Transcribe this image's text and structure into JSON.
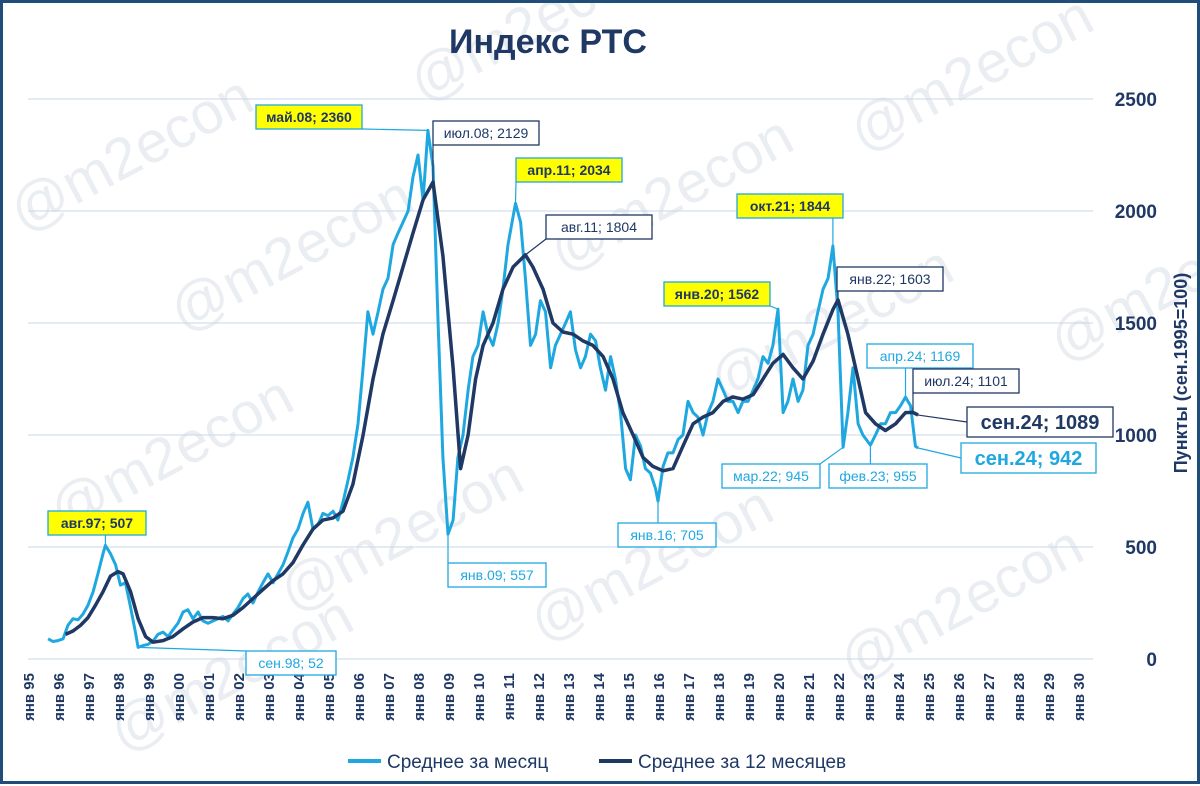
{
  "watermark": "@m2econ",
  "chart_data": {
    "type": "line",
    "title": "Индекс РТС",
    "ylabel": "Пункты (сен.1995=100)",
    "ylim": [
      0,
      2500
    ],
    "yticks": [
      0,
      500,
      1000,
      1500,
      2000,
      2500
    ],
    "grid": true,
    "legend": "bottom",
    "x_tick_labels": [
      "янв 95",
      "янв 96",
      "янв 97",
      "янв 98",
      "янв 99",
      "янв 00",
      "янв 01",
      "янв 02",
      "янв 03",
      "янв 04",
      "янв 05",
      "янв 06",
      "янв 07",
      "янв 08",
      "янв 09",
      "янв 10",
      "янв 11",
      "янв 12",
      "янв 13",
      "янв 14",
      "янв 15",
      "янв 16",
      "янв 17",
      "янв 18",
      "янв 19",
      "янв 20",
      "янв 21",
      "янв 22",
      "янв 23",
      "янв 24",
      "янв 25",
      "янв 26",
      "янв 27",
      "янв 28",
      "янв 29",
      "янв 30"
    ],
    "x_range": [
      1995.0,
      2030.5
    ],
    "series": [
      {
        "name": "Среднее за месяц",
        "color": "#1fa8e0",
        "points": [
          [
            1995.67,
            90
          ],
          [
            1995.83,
            78
          ],
          [
            1996.0,
            82
          ],
          [
            1996.17,
            90
          ],
          [
            1996.33,
            150
          ],
          [
            1996.5,
            180
          ],
          [
            1996.67,
            175
          ],
          [
            1996.83,
            200
          ],
          [
            1997.0,
            240
          ],
          [
            1997.17,
            300
          ],
          [
            1997.33,
            380
          ],
          [
            1997.5,
            470
          ],
          [
            1997.58,
            507
          ],
          [
            1997.75,
            470
          ],
          [
            1997.92,
            420
          ],
          [
            1998.08,
            330
          ],
          [
            1998.25,
            340
          ],
          [
            1998.42,
            230
          ],
          [
            1998.58,
            120
          ],
          [
            1998.67,
            52
          ],
          [
            1998.83,
            60
          ],
          [
            1999.0,
            65
          ],
          [
            1999.17,
            80
          ],
          [
            1999.33,
            110
          ],
          [
            1999.5,
            120
          ],
          [
            1999.67,
            100
          ],
          [
            1999.83,
            130
          ],
          [
            2000.0,
            160
          ],
          [
            2000.17,
            210
          ],
          [
            2000.33,
            220
          ],
          [
            2000.5,
            180
          ],
          [
            2000.67,
            210
          ],
          [
            2000.83,
            170
          ],
          [
            2001.0,
            160
          ],
          [
            2001.17,
            170
          ],
          [
            2001.33,
            180
          ],
          [
            2001.5,
            190
          ],
          [
            2001.67,
            170
          ],
          [
            2001.83,
            200
          ],
          [
            2002.0,
            230
          ],
          [
            2002.17,
            270
          ],
          [
            2002.33,
            290
          ],
          [
            2002.5,
            250
          ],
          [
            2002.67,
            300
          ],
          [
            2002.83,
            340
          ],
          [
            2003.0,
            380
          ],
          [
            2003.17,
            340
          ],
          [
            2003.33,
            380
          ],
          [
            2003.5,
            420
          ],
          [
            2003.67,
            480
          ],
          [
            2003.83,
            540
          ],
          [
            2004.0,
            580
          ],
          [
            2004.17,
            650
          ],
          [
            2004.33,
            700
          ],
          [
            2004.5,
            580
          ],
          [
            2004.67,
            600
          ],
          [
            2004.83,
            650
          ],
          [
            2005.0,
            640
          ],
          [
            2005.17,
            660
          ],
          [
            2005.33,
            620
          ],
          [
            2005.5,
            700
          ],
          [
            2005.67,
            800
          ],
          [
            2005.83,
            900
          ],
          [
            2006.0,
            1050
          ],
          [
            2006.17,
            1300
          ],
          [
            2006.33,
            1550
          ],
          [
            2006.5,
            1450
          ],
          [
            2006.67,
            1550
          ],
          [
            2006.83,
            1650
          ],
          [
            2007.0,
            1700
          ],
          [
            2007.17,
            1850
          ],
          [
            2007.33,
            1900
          ],
          [
            2007.5,
            1950
          ],
          [
            2007.67,
            2000
          ],
          [
            2007.83,
            2150
          ],
          [
            2008.0,
            2250
          ],
          [
            2008.17,
            2050
          ],
          [
            2008.33,
            2360
          ],
          [
            2008.5,
            2200
          ],
          [
            2008.67,
            1500
          ],
          [
            2008.83,
            900
          ],
          [
            2009.0,
            557
          ],
          [
            2009.17,
            620
          ],
          [
            2009.33,
            900
          ],
          [
            2009.5,
            1000
          ],
          [
            2009.67,
            1200
          ],
          [
            2009.83,
            1350
          ],
          [
            2010.0,
            1400
          ],
          [
            2010.17,
            1550
          ],
          [
            2010.33,
            1450
          ],
          [
            2010.5,
            1400
          ],
          [
            2010.67,
            1500
          ],
          [
            2010.83,
            1650
          ],
          [
            2011.0,
            1850
          ],
          [
            2011.25,
            2034
          ],
          [
            2011.42,
            1950
          ],
          [
            2011.58,
            1700
          ],
          [
            2011.75,
            1400
          ],
          [
            2011.92,
            1450
          ],
          [
            2012.08,
            1600
          ],
          [
            2012.25,
            1550
          ],
          [
            2012.42,
            1300
          ],
          [
            2012.58,
            1400
          ],
          [
            2012.75,
            1450
          ],
          [
            2012.92,
            1500
          ],
          [
            2013.08,
            1550
          ],
          [
            2013.25,
            1380
          ],
          [
            2013.42,
            1300
          ],
          [
            2013.58,
            1350
          ],
          [
            2013.75,
            1450
          ],
          [
            2013.92,
            1420
          ],
          [
            2014.08,
            1300
          ],
          [
            2014.25,
            1200
          ],
          [
            2014.42,
            1350
          ],
          [
            2014.58,
            1250
          ],
          [
            2014.75,
            1100
          ],
          [
            2014.92,
            850
          ],
          [
            2015.08,
            800
          ],
          [
            2015.25,
            1000
          ],
          [
            2015.42,
            950
          ],
          [
            2015.58,
            850
          ],
          [
            2015.75,
            830
          ],
          [
            2015.92,
            760
          ],
          [
            2016.0,
            705
          ],
          [
            2016.17,
            860
          ],
          [
            2016.33,
            920
          ],
          [
            2016.5,
            920
          ],
          [
            2016.67,
            980
          ],
          [
            2016.83,
            1000
          ],
          [
            2017.0,
            1150
          ],
          [
            2017.17,
            1100
          ],
          [
            2017.33,
            1080
          ],
          [
            2017.5,
            1000
          ],
          [
            2017.67,
            1100
          ],
          [
            2017.83,
            1150
          ],
          [
            2018.0,
            1250
          ],
          [
            2018.17,
            1200
          ],
          [
            2018.33,
            1150
          ],
          [
            2018.5,
            1150
          ],
          [
            2018.67,
            1100
          ],
          [
            2018.83,
            1150
          ],
          [
            2019.0,
            1150
          ],
          [
            2019.17,
            1200
          ],
          [
            2019.33,
            1250
          ],
          [
            2019.5,
            1350
          ],
          [
            2019.67,
            1320
          ],
          [
            2019.83,
            1400
          ],
          [
            2020.0,
            1562
          ],
          [
            2020.17,
            1100
          ],
          [
            2020.33,
            1150
          ],
          [
            2020.5,
            1250
          ],
          [
            2020.67,
            1150
          ],
          [
            2020.83,
            1200
          ],
          [
            2021.0,
            1400
          ],
          [
            2021.17,
            1450
          ],
          [
            2021.33,
            1550
          ],
          [
            2021.5,
            1650
          ],
          [
            2021.67,
            1700
          ],
          [
            2021.83,
            1844
          ],
          [
            2022.0,
            1550
          ],
          [
            2022.17,
            945
          ],
          [
            2022.33,
            1100
          ],
          [
            2022.5,
            1300
          ],
          [
            2022.67,
            1050
          ],
          [
            2022.83,
            1000
          ],
          [
            2023.08,
            955
          ],
          [
            2023.25,
            1000
          ],
          [
            2023.42,
            1050
          ],
          [
            2023.58,
            1050
          ],
          [
            2023.75,
            1100
          ],
          [
            2023.92,
            1100
          ],
          [
            2024.08,
            1130
          ],
          [
            2024.25,
            1169
          ],
          [
            2024.42,
            1130
          ],
          [
            2024.58,
            950
          ],
          [
            2024.67,
            942
          ]
        ]
      },
      {
        "name": "Среднее за 12 месяцев",
        "color": "#1f3864",
        "points": [
          [
            1996.25,
            110
          ],
          [
            1996.5,
            125
          ],
          [
            1996.75,
            150
          ],
          [
            1997.0,
            185
          ],
          [
            1997.25,
            240
          ],
          [
            1997.5,
            300
          ],
          [
            1997.75,
            370
          ],
          [
            1998.0,
            390
          ],
          [
            1998.17,
            380
          ],
          [
            1998.42,
            300
          ],
          [
            1998.67,
            180
          ],
          [
            1998.92,
            100
          ],
          [
            1999.17,
            75
          ],
          [
            1999.5,
            82
          ],
          [
            1999.83,
            100
          ],
          [
            2000.17,
            135
          ],
          [
            2000.5,
            165
          ],
          [
            2000.83,
            185
          ],
          [
            2001.17,
            185
          ],
          [
            2001.5,
            180
          ],
          [
            2001.83,
            195
          ],
          [
            2002.17,
            230
          ],
          [
            2002.5,
            270
          ],
          [
            2002.83,
            310
          ],
          [
            2003.17,
            350
          ],
          [
            2003.5,
            380
          ],
          [
            2003.83,
            430
          ],
          [
            2004.17,
            510
          ],
          [
            2004.5,
            580
          ],
          [
            2004.83,
            620
          ],
          [
            2005.17,
            630
          ],
          [
            2005.5,
            660
          ],
          [
            2005.83,
            780
          ],
          [
            2006.17,
            1000
          ],
          [
            2006.5,
            1250
          ],
          [
            2006.83,
            1450
          ],
          [
            2007.17,
            1600
          ],
          [
            2007.5,
            1750
          ],
          [
            2007.83,
            1900
          ],
          [
            2008.17,
            2050
          ],
          [
            2008.5,
            2129
          ],
          [
            2008.83,
            1800
          ],
          [
            2009.17,
            1300
          ],
          [
            2009.42,
            850
          ],
          [
            2009.67,
            1000
          ],
          [
            2009.92,
            1250
          ],
          [
            2010.17,
            1400
          ],
          [
            2010.5,
            1500
          ],
          [
            2010.83,
            1650
          ],
          [
            2011.17,
            1750
          ],
          [
            2011.58,
            1804
          ],
          [
            2011.83,
            1750
          ],
          [
            2012.17,
            1650
          ],
          [
            2012.5,
            1500
          ],
          [
            2012.83,
            1460
          ],
          [
            2013.17,
            1450
          ],
          [
            2013.5,
            1420
          ],
          [
            2013.83,
            1400
          ],
          [
            2014.17,
            1350
          ],
          [
            2014.5,
            1250
          ],
          [
            2014.83,
            1100
          ],
          [
            2015.17,
            1000
          ],
          [
            2015.5,
            900
          ],
          [
            2015.83,
            860
          ],
          [
            2016.17,
            840
          ],
          [
            2016.5,
            850
          ],
          [
            2016.83,
            950
          ],
          [
            2017.17,
            1050
          ],
          [
            2017.5,
            1080
          ],
          [
            2017.83,
            1100
          ],
          [
            2018.17,
            1150
          ],
          [
            2018.5,
            1170
          ],
          [
            2018.83,
            1160
          ],
          [
            2019.17,
            1180
          ],
          [
            2019.5,
            1250
          ],
          [
            2019.83,
            1320
          ],
          [
            2020.17,
            1360
          ],
          [
            2020.5,
            1300
          ],
          [
            2020.83,
            1250
          ],
          [
            2021.17,
            1330
          ],
          [
            2021.5,
            1450
          ],
          [
            2021.83,
            1560
          ],
          [
            2022.0,
            1603
          ],
          [
            2022.33,
            1450
          ],
          [
            2022.67,
            1250
          ],
          [
            2022.92,
            1100
          ],
          [
            2023.25,
            1050
          ],
          [
            2023.58,
            1020
          ],
          [
            2023.92,
            1050
          ],
          [
            2024.25,
            1100
          ],
          [
            2024.5,
            1101
          ],
          [
            2024.67,
            1089
          ]
        ]
      }
    ],
    "annotations": [
      {
        "text": "авг.97; 507",
        "x": 1997.58,
        "y": 507,
        "style": "yellow"
      },
      {
        "text": "сен.98; 52",
        "x": 1998.67,
        "y": 52,
        "style": "light"
      },
      {
        "text": "май.08; 2360",
        "x": 2008.33,
        "y": 2360,
        "style": "yellow"
      },
      {
        "text": "июл.08; 2129",
        "x": 2008.5,
        "y": 2129,
        "style": "dark"
      },
      {
        "text": "янв.09; 557",
        "x": 2009.0,
        "y": 557,
        "style": "light"
      },
      {
        "text": "апр.11; 2034",
        "x": 2011.25,
        "y": 2034,
        "style": "yellow"
      },
      {
        "text": "авг.11; 1804",
        "x": 2011.58,
        "y": 1804,
        "style": "dark"
      },
      {
        "text": "янв.16; 705",
        "x": 2016.0,
        "y": 705,
        "style": "light"
      },
      {
        "text": "янв.20; 1562",
        "x": 2020.0,
        "y": 1562,
        "style": "yellow"
      },
      {
        "text": "окт.21; 1844",
        "x": 2021.83,
        "y": 1844,
        "style": "yellow"
      },
      {
        "text": "янв.22; 1603",
        "x": 2022.0,
        "y": 1603,
        "style": "dark"
      },
      {
        "text": "мар.22; 945",
        "x": 2022.17,
        "y": 945,
        "style": "light"
      },
      {
        "text": "фев.23; 955",
        "x": 2023.08,
        "y": 955,
        "style": "light"
      },
      {
        "text": "апр.24; 1169",
        "x": 2024.25,
        "y": 1169,
        "style": "light"
      },
      {
        "text": "июл.24; 1101",
        "x": 2024.5,
        "y": 1101,
        "style": "dark"
      },
      {
        "text": "сен.24; 1089",
        "x": 2024.67,
        "y": 1089,
        "style": "dark-big"
      },
      {
        "text": "сен.24; 942",
        "x": 2024.67,
        "y": 942,
        "style": "light-big"
      }
    ]
  }
}
